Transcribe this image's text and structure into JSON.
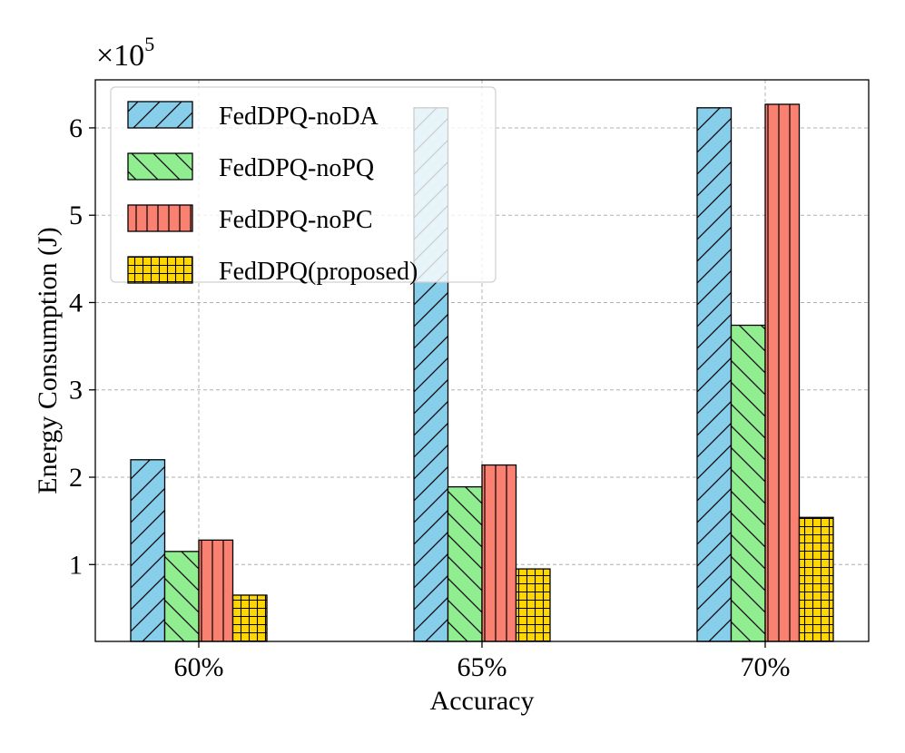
{
  "chart_data": {
    "type": "bar",
    "title": "",
    "xlabel": "Accuracy",
    "ylabel": "Energy Consumption (J)",
    "y_multiplier_label": "×10",
    "y_multiplier_exponent": "5",
    "categories": [
      "60%",
      "65%",
      "70%"
    ],
    "ylim": [
      0.12,
      6.55
    ],
    "yticks": [
      1,
      2,
      3,
      4,
      5,
      6
    ],
    "ytick_labels": [
      "1",
      "2",
      "3",
      "4",
      "5",
      "6"
    ],
    "grid": true,
    "legend_position": "top-left",
    "series": [
      {
        "name": "FedDPQ-noDA",
        "color": "#87CEEB",
        "hatch": "diag-forward",
        "values": [
          2.2,
          6.23,
          6.23
        ]
      },
      {
        "name": "FedDPQ-noPQ",
        "color": "#90EE90",
        "hatch": "diag-back",
        "values": [
          1.15,
          1.89,
          3.74
        ]
      },
      {
        "name": "FedDPQ-noPC",
        "color": "#FA8072",
        "hatch": "vertical",
        "values": [
          1.28,
          2.14,
          6.27
        ]
      },
      {
        "name": "FedDPQ(proposed)",
        "color": "#FFD700",
        "hatch": "grid",
        "values": [
          0.65,
          0.95,
          1.54
        ]
      }
    ]
  }
}
